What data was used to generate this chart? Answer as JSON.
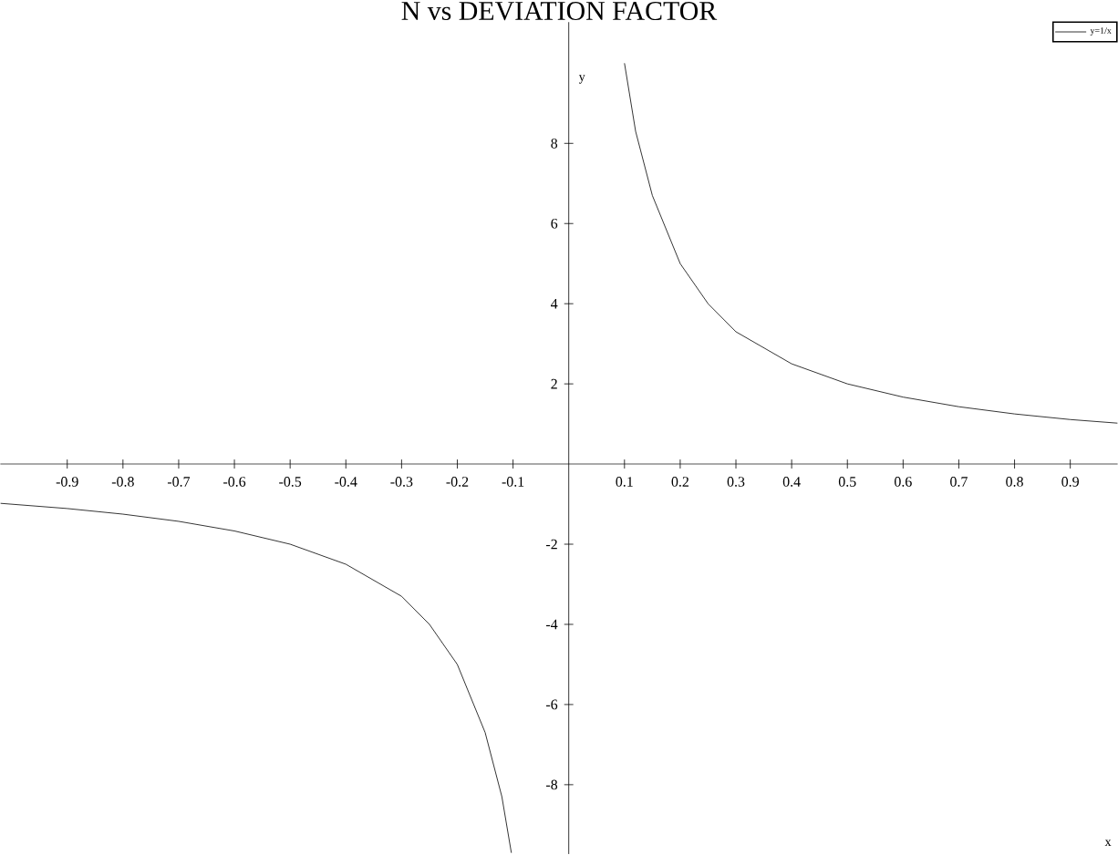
{
  "chart_data": {
    "type": "line",
    "title": "N vs DEVIATION FACTOR",
    "xlabel": "x",
    "ylabel": "y",
    "xlim": [
      -1.02,
      0.985
    ],
    "ylim": [
      -9.73,
      11.36
    ],
    "xticks": [
      -0.9,
      -0.8,
      -0.7,
      -0.6,
      -0.5,
      -0.4,
      -0.3,
      -0.2,
      -0.1,
      0.1,
      0.2,
      0.3,
      0.4,
      0.5,
      0.6,
      0.7,
      0.8,
      0.9
    ],
    "yticks": [
      -8,
      -6,
      -4,
      -2,
      2,
      4,
      6,
      8
    ],
    "x": [
      -1.02,
      -0.9,
      -0.8,
      -0.7,
      -0.6,
      -0.5,
      -0.4,
      -0.3,
      -0.25,
      -0.2,
      -0.15,
      -0.12,
      -0.103,
      0,
      0.1,
      0.12,
      0.15,
      0.2,
      0.25,
      0.3,
      0.4,
      0.5,
      0.6,
      0.7,
      0.8,
      0.9,
      0.985
    ],
    "series": [
      {
        "name": "y=1/x",
        "color": "#000000",
        "values": [
          -0.98,
          -1.11,
          -1.25,
          -1.43,
          -1.67,
          -2,
          -2.5,
          -3.3,
          -4,
          -5,
          -6.7,
          -8.3,
          -9.7,
          null,
          10,
          8.3,
          6.7,
          5,
          4,
          3.3,
          2.5,
          2,
          1.67,
          1.43,
          1.25,
          1.11,
          1.02
        ]
      }
    ],
    "legend": "top right",
    "marker": "none",
    "line_style": "solid",
    "grid": false
  }
}
